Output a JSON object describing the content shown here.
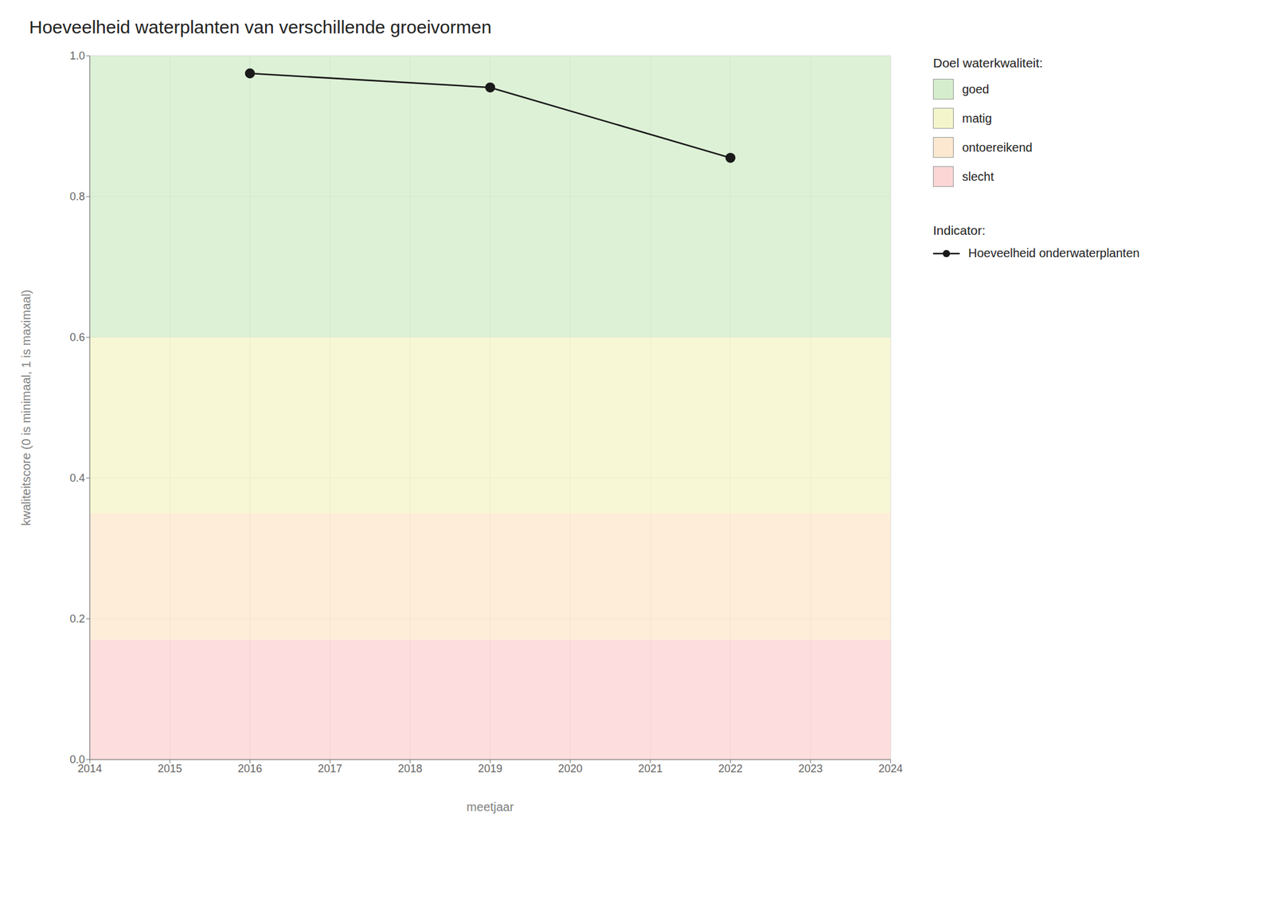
{
  "chart_data": {
    "type": "line",
    "title": "Hoeveelheid waterplanten van verschillende groeivormen",
    "x_label": "meetjaar",
    "y_label": "kwaliteitscore (0 is minimaal, 1 is maximaal)",
    "x": [
      2016,
      2019,
      2022
    ],
    "series": [
      {
        "name": "Hoeveelheid onderwaterplanten",
        "color": "#1a1a1a",
        "marker": "circle",
        "values": [
          0.975,
          0.955,
          0.855
        ]
      }
    ],
    "xlim": [
      2014,
      2024
    ],
    "ylim": [
      0.0,
      1.0
    ],
    "xticks": [
      2014,
      2015,
      2016,
      2017,
      2018,
      2019,
      2020,
      2021,
      2022,
      2023,
      2024
    ],
    "yticks": [
      {
        "value": 0.0,
        "label": "0.0"
      },
      0.2,
      0.4,
      0.6,
      0.8,
      {
        "value": 1.0,
        "label": "1.0"
      }
    ],
    "grid": true,
    "bands_title": "Doel waterkwaliteit:",
    "bands": [
      {
        "name": "goed",
        "range": [
          0.6,
          1.0
        ],
        "color": "#d5edcc"
      },
      {
        "name": "matig",
        "range": [
          0.35,
          0.6
        ],
        "color": "#f5f5cc"
      },
      {
        "name": "ontoereikend",
        "range": [
          0.17,
          0.35
        ],
        "color": "#fce8d0"
      },
      {
        "name": "slecht",
        "range": [
          0.0,
          0.17
        ],
        "color": "#fcd5d5"
      }
    ],
    "series_legend_title": "Indicator:"
  }
}
